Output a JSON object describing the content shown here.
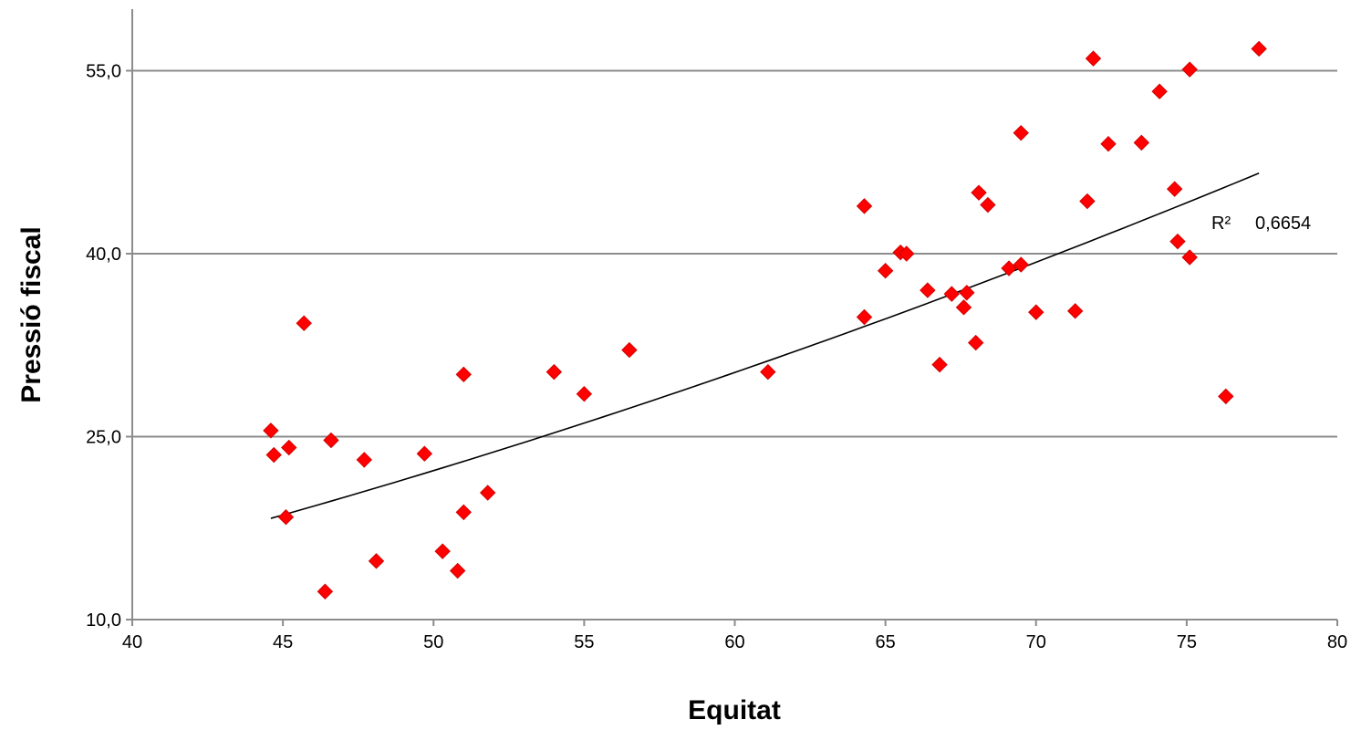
{
  "chart_data": {
    "type": "scatter",
    "xlabel": "Equitat",
    "ylabel": "Pressió fiscal",
    "xlim": [
      40,
      80
    ],
    "ylim": [
      10,
      60
    ],
    "x_ticks": [
      "40",
      "45",
      "50",
      "55",
      "60",
      "65",
      "70",
      "75",
      "80"
    ],
    "y_ticks": [
      "10,0",
      "25,0",
      "40,0",
      "55,0"
    ],
    "grid": "horizontal",
    "marker": "diamond",
    "marker_color": "#ff0000",
    "series": [
      {
        "points": [
          [
            44.6,
            25.5
          ],
          [
            44.7,
            23.5
          ],
          [
            45.1,
            18.4
          ],
          [
            45.2,
            24.1
          ],
          [
            45.7,
            34.3
          ],
          [
            46.4,
            12.3
          ],
          [
            46.6,
            24.7
          ],
          [
            47.7,
            23.1
          ],
          [
            48.1,
            14.8
          ],
          [
            49.7,
            23.6
          ],
          [
            50.3,
            15.6
          ],
          [
            50.8,
            14.0
          ],
          [
            51.0,
            18.8
          ],
          [
            51.0,
            30.1
          ],
          [
            51.8,
            20.4
          ],
          [
            54.0,
            30.3
          ],
          [
            55.0,
            28.5
          ],
          [
            56.5,
            32.1
          ],
          [
            61.1,
            30.3
          ],
          [
            64.3,
            43.9
          ],
          [
            64.3,
            34.8
          ],
          [
            65.0,
            38.6
          ],
          [
            65.5,
            40.1
          ],
          [
            65.7,
            40.0
          ],
          [
            66.4,
            37.0
          ],
          [
            66.8,
            30.9
          ],
          [
            67.2,
            36.7
          ],
          [
            67.6,
            35.6
          ],
          [
            67.7,
            36.8
          ],
          [
            68.0,
            32.7
          ],
          [
            68.1,
            45.0
          ],
          [
            68.4,
            44.0
          ],
          [
            69.1,
            38.8
          ],
          [
            69.5,
            39.1
          ],
          [
            69.5,
            49.9
          ],
          [
            70.0,
            35.2
          ],
          [
            71.3,
            35.3
          ],
          [
            71.7,
            44.3
          ],
          [
            71.9,
            56.0
          ],
          [
            72.4,
            49.0
          ],
          [
            73.5,
            49.1
          ],
          [
            74.1,
            53.3
          ],
          [
            74.6,
            45.3
          ],
          [
            74.7,
            41.0
          ],
          [
            75.1,
            39.7
          ],
          [
            75.1,
            55.1
          ],
          [
            76.3,
            28.3
          ],
          [
            77.4,
            56.8
          ]
        ]
      }
    ],
    "trendline": {
      "type": "power",
      "color": "#000000",
      "x_range": [
        44.6,
        77.4
      ],
      "y_range": [
        18.3,
        46.6
      ]
    },
    "annotation": {
      "r2_label": "R²",
      "r2_value": "0,6654"
    }
  }
}
